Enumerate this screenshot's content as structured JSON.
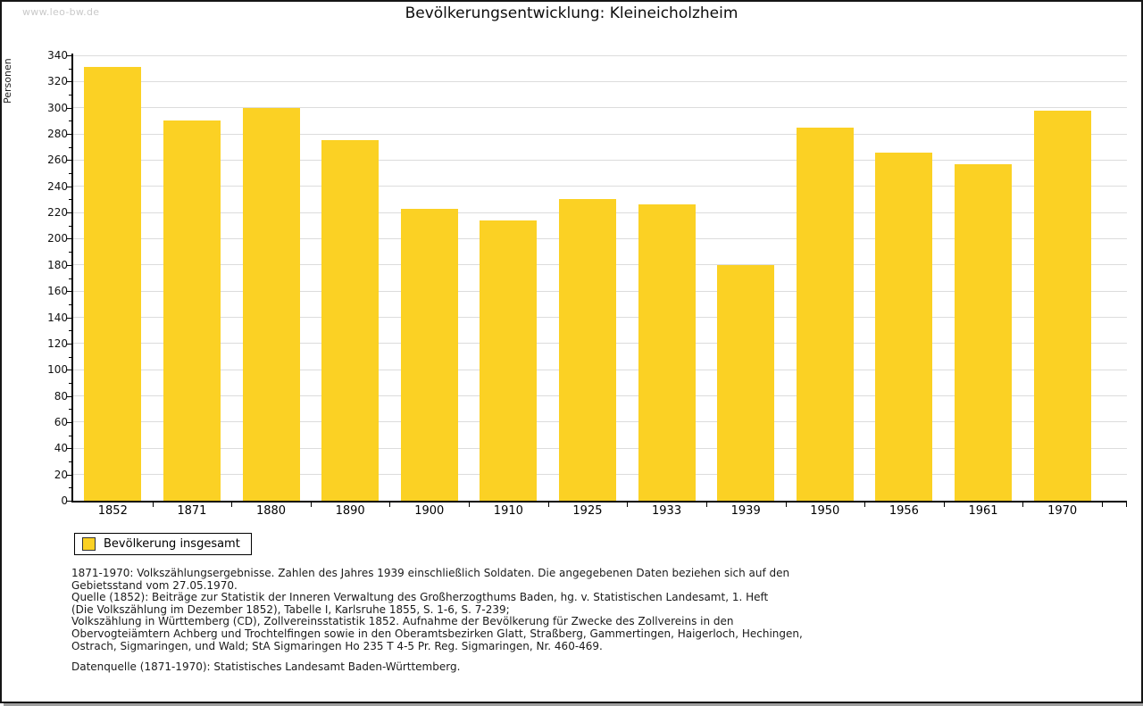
{
  "watermark": "www.leo-bw.de",
  "title": "Bevölkerungsentwicklung: Kleineicholzheim",
  "chart_data": {
    "type": "bar",
    "title": "Bevölkerungsentwicklung: Kleineicholzheim",
    "xlabel": "",
    "ylabel": "Personen",
    "categories": [
      "1852",
      "1871",
      "1880",
      "1890",
      "1900",
      "1910",
      "1925",
      "1933",
      "1939",
      "1950",
      "1956",
      "1961",
      "1970"
    ],
    "series": [
      {
        "name": "Bevölkerung insgesamt",
        "values": [
          331,
          290,
          300,
          275,
          223,
          214,
          230,
          226,
          180,
          285,
          266,
          257,
          298
        ]
      }
    ],
    "ylim": [
      0,
      340
    ],
    "ytick_step": 20,
    "ytick_minor_step": 10,
    "grid": "horizontal",
    "legend_position": "below-left",
    "bar_color": "#FBD124",
    "gridline_color": "#dcdcdc",
    "axis_color": "#000000"
  },
  "legend": {
    "items": [
      {
        "label": "Bevölkerung insgesamt",
        "color": "#FBD124"
      }
    ]
  },
  "footer": {
    "lines": [
      "1871-1970: Volkszählungsergebnisse. Zahlen des Jahres 1939 einschließlich Soldaten. Die angegebenen Daten beziehen sich auf den",
      "Gebietsstand vom 27.05.1970.",
      "Quelle (1852): Beiträge zur Statistik der Inneren Verwaltung des Großherzogthums Baden, hg. v. Statistischen Landesamt, 1. Heft",
      "(Die Volkszählung im Dezember 1852), Tabelle I, Karlsruhe 1855, S. 1-6, S. 7-239;",
      "Volkszählung in Württemberg (CD), Zollvereinsstatistik 1852. Aufnahme der Bevölkerung für Zwecke des Zollvereins in den",
      "Obervogteiämtern Achberg und Trochtelfingen sowie in den Oberamtsbezirken Glatt, Straßberg, Gammertingen, Haigerloch, Hechingen,",
      "Ostrach, Sigmaringen, und Wald; StA Sigmaringen Ho 235 T 4-5 Pr. Reg. Sigmaringen, Nr. 460-469."
    ],
    "datasource": "Datenquelle (1871-1970): Statistisches Landesamt Baden-Württemberg."
  }
}
